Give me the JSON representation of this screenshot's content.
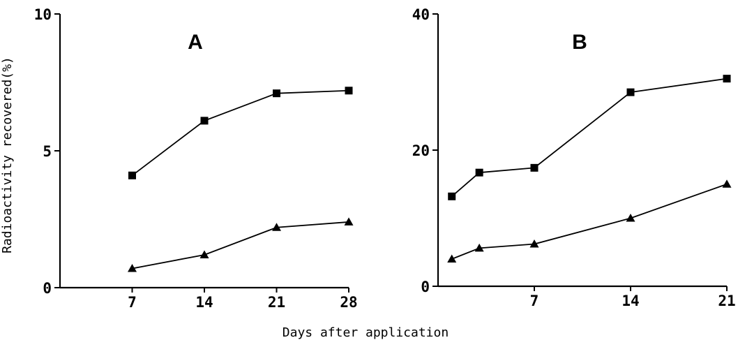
{
  "chart_data": [
    {
      "type": "line",
      "title": "A",
      "xlabel": "Days after application",
      "ylabel": "Radioactivity recovered(%)",
      "x_ticks": [
        7,
        14,
        21,
        28
      ],
      "y_ticks": [
        0,
        5,
        10
      ],
      "xlim": [
        0,
        28
      ],
      "ylim": [
        0,
        10
      ],
      "grid": false,
      "series": [
        {
          "marker": "square",
          "x": [
            7,
            14,
            21,
            28
          ],
          "y": [
            4.1,
            6.1,
            7.1,
            7.2
          ]
        },
        {
          "marker": "triangle",
          "x": [
            7,
            14,
            21,
            28
          ],
          "y": [
            0.7,
            1.2,
            2.2,
            2.4
          ]
        }
      ]
    },
    {
      "type": "line",
      "title": "B",
      "xlabel": "Days after application",
      "x_ticks": [
        7,
        14,
        21
      ],
      "y_ticks": [
        0,
        20,
        40
      ],
      "xlim": [
        0,
        21
      ],
      "ylim": [
        0,
        40
      ],
      "grid": false,
      "series": [
        {
          "marker": "square",
          "x": [
            1,
            3,
            7,
            14,
            21
          ],
          "y": [
            13.2,
            16.7,
            17.4,
            28.5,
            30.5
          ]
        },
        {
          "marker": "triangle",
          "x": [
            1,
            3,
            7,
            14,
            21
          ],
          "y": [
            4.0,
            5.6,
            6.2,
            10.0,
            15.0
          ]
        }
      ]
    }
  ]
}
